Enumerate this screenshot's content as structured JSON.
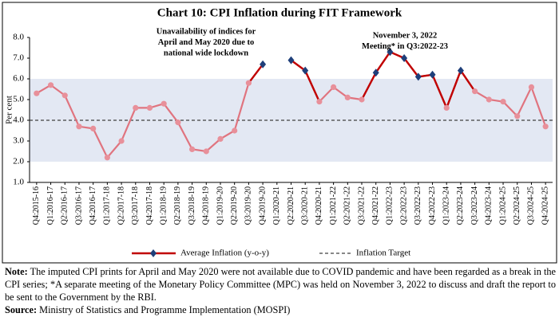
{
  "chart_data": {
    "type": "line",
    "title": "Chart 10: CPI Inflation during FIT Framework",
    "y_label": "Per cent",
    "categories": [
      "Q4:2015-16",
      "Q1:2016-17",
      "Q2:2016-17",
      "Q3:2016-17",
      "Q4:2016-17",
      "Q1:2017-18",
      "Q2:2017-18",
      "Q3:2017-18",
      "Q4:2017-18",
      "Q1:2018-19",
      "Q2:2018-19",
      "Q3:2018-19",
      "Q4:2018-19",
      "Q1:2019-20",
      "Q2:2019-20",
      "Q3:2019-20",
      "Q4:2019-20",
      "Q1:2020-21",
      "Q2:2020-21",
      "Q3:2020-21",
      "Q4:2020-21",
      "Q1:2021-22",
      "Q2:2021-22",
      "Q3:2021-22",
      "Q4:2021-22",
      "Q1:2022-23",
      "Q2:2022-23",
      "Q3:2022-23",
      "Q4:2022-23",
      "Q1:2023-24",
      "Q2:2023-24",
      "Q3:2023-24",
      "Q4:2023-24",
      "Q1:2024-25",
      "Q2:2024-25",
      "Q3:2024-25",
      "Q4:2024-25"
    ],
    "series": [
      {
        "name": "Average Inflation (y-o-y)",
        "color": "#e0747f",
        "breach_color": "#c00000",
        "marker_color": "#e8909a",
        "breach_marker_color": "#1f3f7a",
        "values": [
          5.3,
          5.7,
          5.2,
          3.7,
          3.6,
          2.2,
          3.0,
          4.6,
          4.6,
          4.8,
          3.9,
          2.6,
          2.5,
          3.1,
          3.5,
          5.8,
          6.7,
          null,
          6.9,
          6.4,
          4.9,
          5.6,
          5.1,
          5.0,
          6.3,
          7.3,
          7.0,
          6.1,
          6.2,
          4.6,
          6.4,
          5.4,
          5.0,
          4.9,
          4.2,
          5.6,
          3.7
        ]
      }
    ],
    "target": {
      "name": "Inflation Target",
      "value": 4,
      "color": "#404040"
    },
    "tolerance_band": [
      2,
      6
    ],
    "band_color": "#e3e8f3",
    "ylim": [
      1,
      8
    ],
    "yticks": [
      {
        "value": 1,
        "label": "1.0"
      },
      {
        "value": 2,
        "label": "2.0"
      },
      {
        "value": 3,
        "label": "3.0"
      },
      {
        "value": 4,
        "label": "4.0"
      },
      {
        "value": 5,
        "label": "5.0"
      },
      {
        "value": 6,
        "label": "6.0"
      },
      {
        "value": 7,
        "label": "7.0"
      },
      {
        "value": 8,
        "label": "8.0"
      }
    ],
    "annotations": [
      {
        "lines": [
          "Unavailability of indices for",
          "April and May 2020 due to",
          "national wide lockdown"
        ]
      },
      {
        "lines": [
          "November 3, 2022",
          "Meeting* in Q3:2022-23"
        ]
      }
    ]
  },
  "notes": {
    "note_label": "Note:",
    "note": "The imputed CPI prints for April and May 2020 were not available due to COVID pandemic and have been regarded as a break in the CPI series; *A separate meeting of the Monetary Policy Committee (MPC) was held on November 3, 2022 to discuss and draft the report to be sent to the Government by the RBI.",
    "source_label": "Source:",
    "source": "Ministry of Statistics and Programme Implementation (MOSPI)"
  }
}
